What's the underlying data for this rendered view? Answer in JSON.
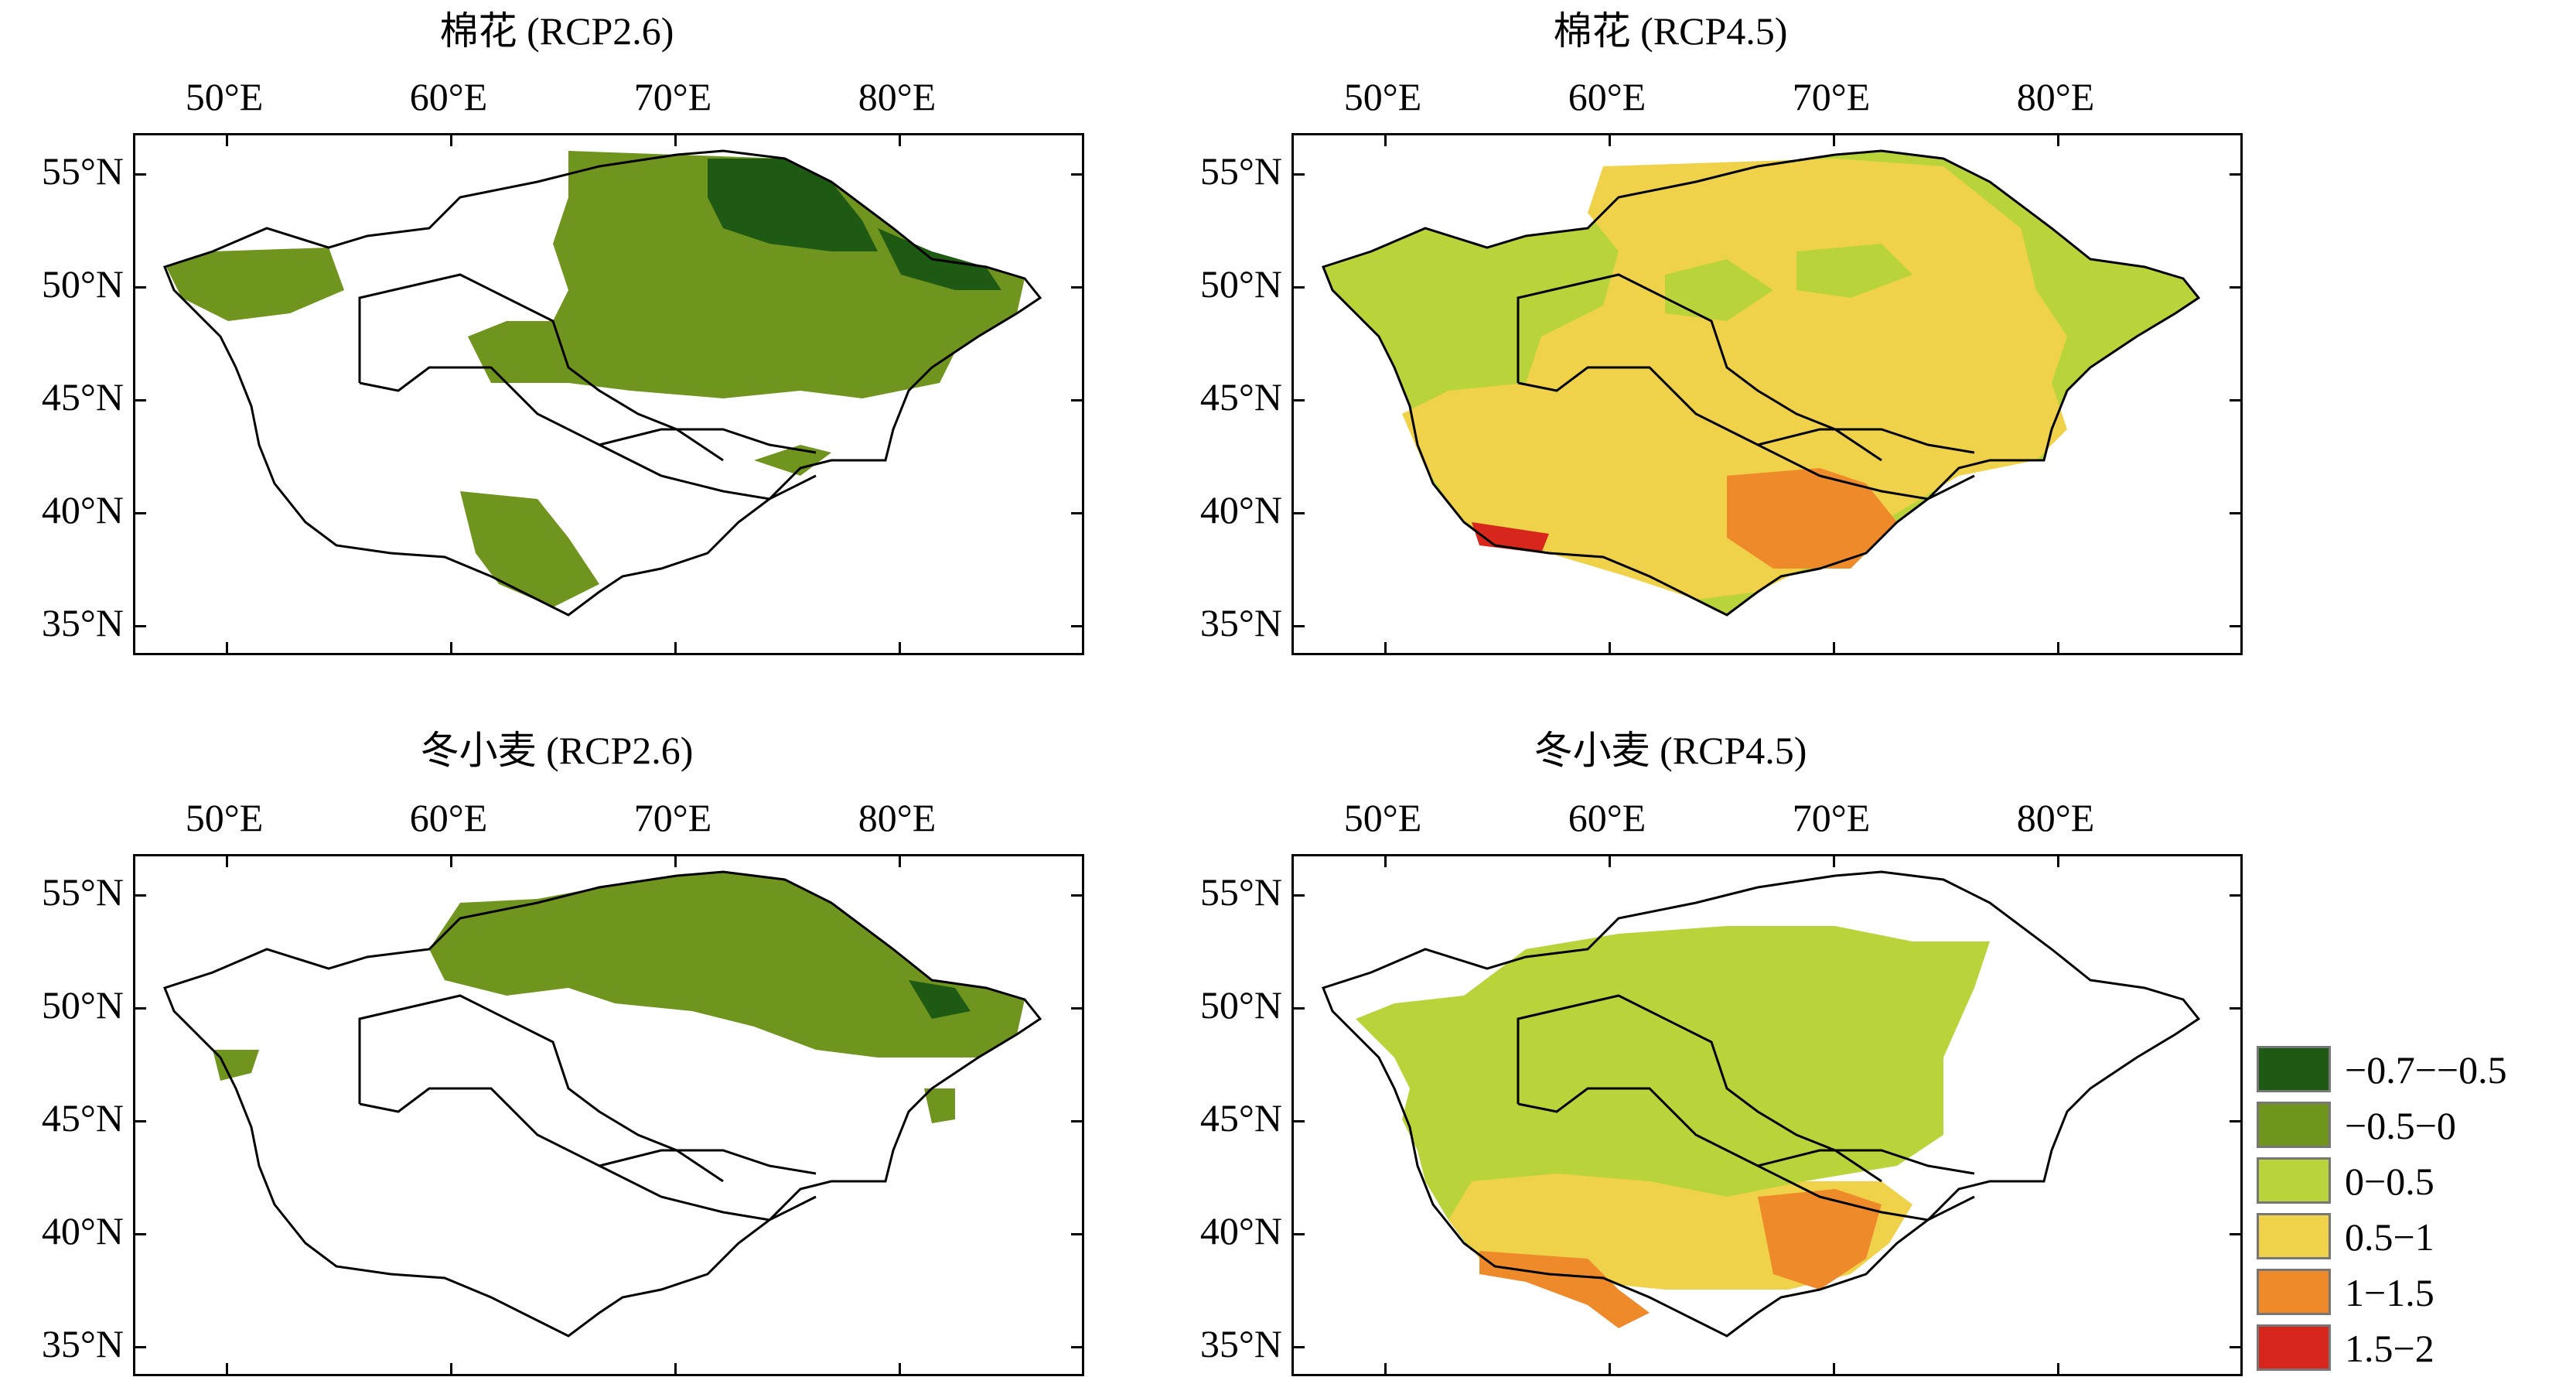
{
  "panels": [
    {
      "title": "棉花 (RCP2.6)",
      "scenario": "cotton-rcp26",
      "classes": [
        "c1",
        "c2"
      ]
    },
    {
      "title": "棉花 (RCP4.5)",
      "scenario": "cotton-rcp45",
      "classes": [
        "c3",
        "c4",
        "c5"
      ]
    },
    {
      "title": "冬小麦 (RCP2.6)",
      "scenario": "wheat-rcp26",
      "classes": [
        "c1",
        "c2"
      ]
    },
    {
      "title": "冬小麦 (RCP4.5)",
      "scenario": "wheat-rcp45",
      "classes": [
        "c3",
        "c4",
        "c5"
      ]
    }
  ],
  "lon_labels": [
    "50°E",
    "60°E",
    "70°E",
    "80°E"
  ],
  "lat_labels": [
    "55°N",
    "50°N",
    "45°N",
    "40°N",
    "35°N"
  ],
  "legend": [
    {
      "label": "−0.7−−0.5",
      "color": "#1f5a14"
    },
    {
      "label": "−0.5−0",
      "color": "#6f951e"
    },
    {
      "label": "0−0.5",
      "color": "#b9d43a"
    },
    {
      "label": "0.5−1",
      "color": "#f0d24a"
    },
    {
      "label": "1−1.5",
      "color": "#ef8a2b"
    },
    {
      "label": "1.5−2",
      "color": "#d9261c"
    }
  ]
}
